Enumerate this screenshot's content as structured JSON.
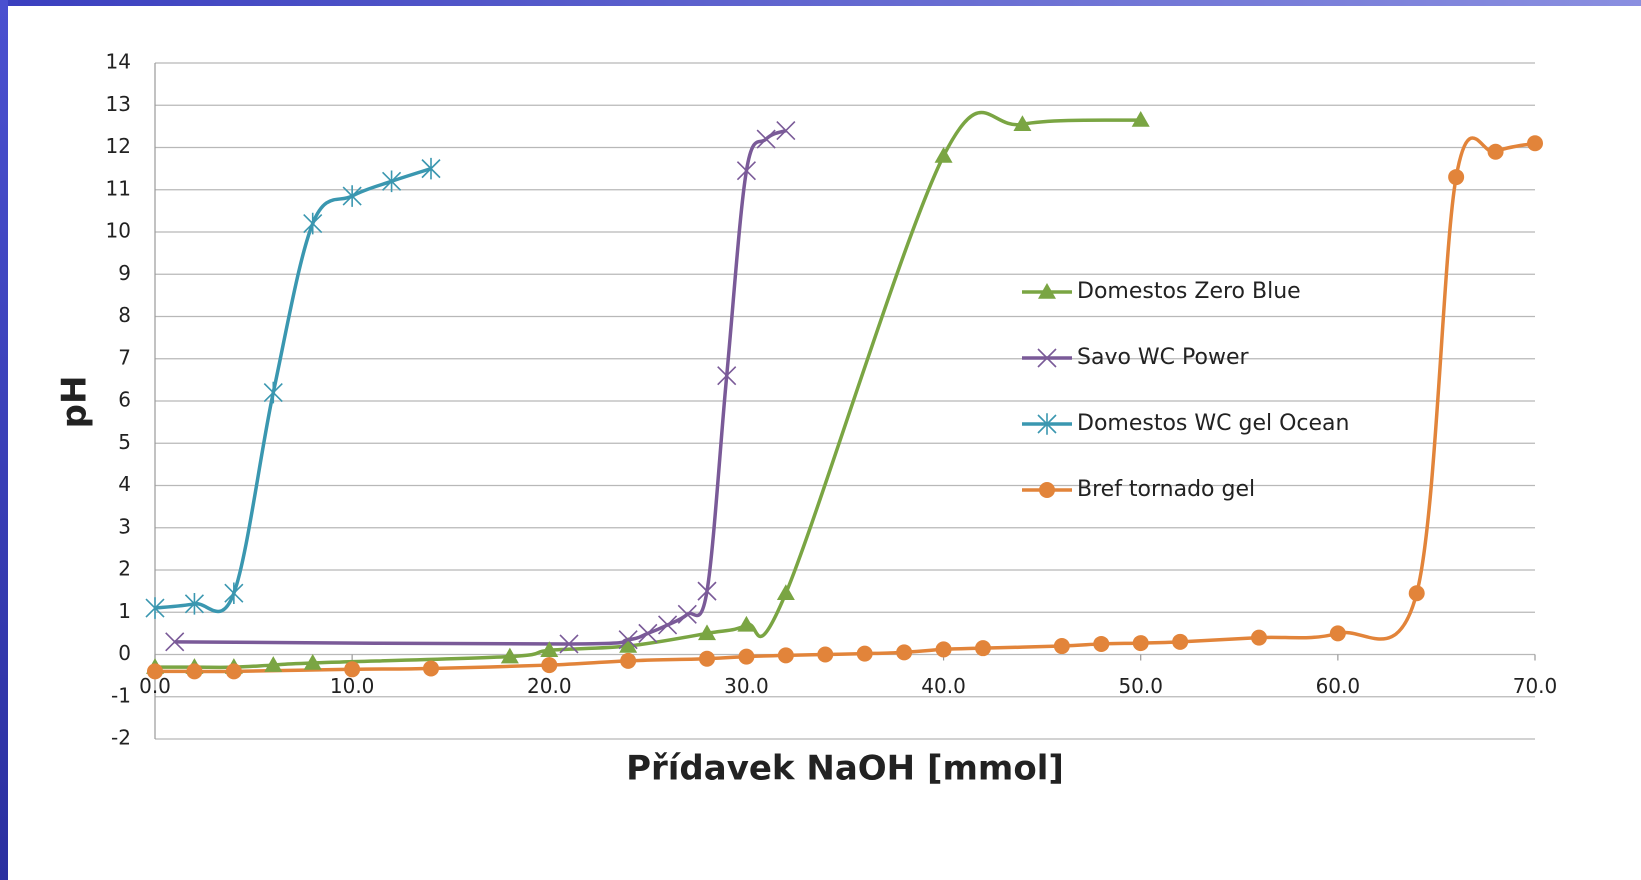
{
  "chart_data": {
    "type": "scatter",
    "xlabel": "Přídavek NaOH [mmol]",
    "ylabel": "pH",
    "xlim": [
      0,
      70
    ],
    "ylim": [
      -2,
      14
    ],
    "xticks": [
      {
        "value": 0,
        "label": "0.0"
      },
      {
        "value": 10,
        "label": "10.0"
      },
      {
        "value": 20,
        "label": "20.0"
      },
      {
        "value": 30,
        "label": "30.0"
      },
      {
        "value": 40,
        "label": "40.0"
      },
      {
        "value": 50,
        "label": "50.0"
      },
      {
        "value": 60,
        "label": "60.0"
      },
      {
        "value": 70,
        "label": "70.0"
      }
    ],
    "yticks": [
      -2,
      -1,
      0,
      1,
      2,
      3,
      4,
      5,
      6,
      7,
      8,
      9,
      10,
      11,
      12,
      13,
      14
    ],
    "grid": true,
    "legend": "right",
    "smooth": true,
    "series": [
      {
        "name": "Domestos Zero Blue",
        "color": "#7aa543",
        "marker": "triangle",
        "x": [
          0,
          2,
          4,
          6,
          8,
          18,
          20,
          24,
          28,
          30,
          32,
          40,
          44,
          50
        ],
        "values": [
          -0.3,
          -0.3,
          -0.3,
          -0.25,
          -0.2,
          -0.05,
          0.1,
          0.2,
          0.5,
          0.7,
          1.45,
          11.8,
          12.55,
          12.65
        ]
      },
      {
        "name": "Savo WC Power",
        "color": "#7a5a98",
        "marker": "x",
        "x": [
          1,
          21,
          24,
          25,
          26,
          27,
          28,
          29,
          30,
          31,
          32
        ],
        "values": [
          0.3,
          0.25,
          0.35,
          0.5,
          0.7,
          0.95,
          1.5,
          6.6,
          11.45,
          12.2,
          12.4
        ]
      },
      {
        "name": "Domestos WC gel Ocean",
        "color": "#3a97b0",
        "marker": "star",
        "x": [
          0,
          2,
          4,
          6,
          8,
          10,
          12,
          14
        ],
        "values": [
          1.1,
          1.2,
          1.45,
          6.2,
          10.2,
          10.85,
          11.2,
          11.5
        ]
      },
      {
        "name": "Bref tornado gel",
        "color": "#e2843a",
        "marker": "circle",
        "x": [
          0,
          2,
          4,
          10,
          14,
          20,
          24,
          28,
          30,
          32,
          34,
          36,
          38,
          40,
          42,
          46,
          48,
          50,
          52,
          56,
          60,
          64,
          66,
          68,
          70
        ],
        "values": [
          -0.4,
          -0.4,
          -0.4,
          -0.35,
          -0.33,
          -0.25,
          -0.15,
          -0.1,
          -0.05,
          -0.02,
          0,
          0.02,
          0.05,
          0.12,
          0.15,
          0.2,
          0.25,
          0.27,
          0.3,
          0.4,
          0.5,
          1.45,
          11.3,
          11.9,
          12.1
        ]
      }
    ]
  }
}
